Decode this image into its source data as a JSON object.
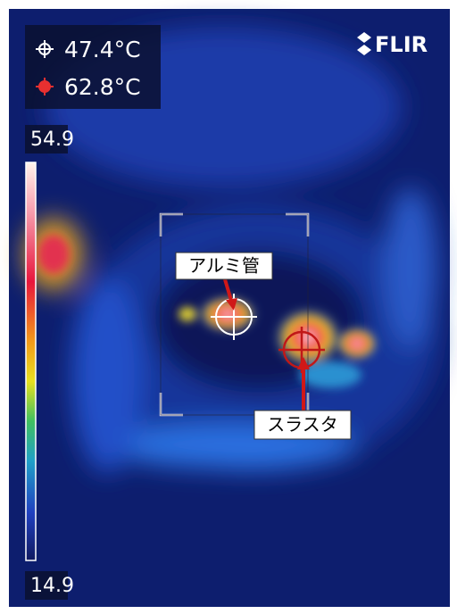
{
  "readings": [
    "47.4°C",
    "62.8°C"
  ],
  "brand": "FLIR",
  "scale": {
    "max": "54.9",
    "min": "14.9"
  },
  "annotations": [
    "アルミ管",
    "スラスタ"
  ]
}
